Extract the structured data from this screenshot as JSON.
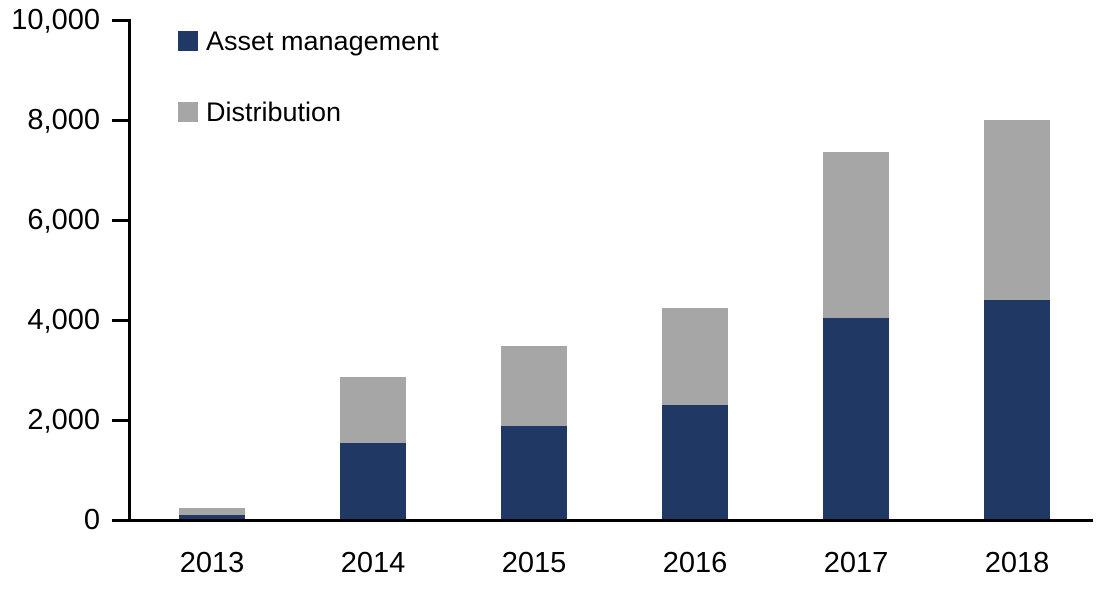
{
  "chart_data": {
    "type": "bar",
    "stacked": true,
    "title": "",
    "xlabel": "",
    "ylabel": "",
    "categories": [
      "2013",
      "2014",
      "2015",
      "2016",
      "2017",
      "2018"
    ],
    "series": [
      {
        "name": "Asset management",
        "color": "#1F3864",
        "values": [
          110,
          1540,
          1880,
          2300,
          4040,
          4400
        ]
      },
      {
        "name": "Distribution",
        "color": "#A6A6A6",
        "values": [
          130,
          1320,
          1600,
          1940,
          3320,
          3600
        ]
      }
    ],
    "totals": [
      240,
      2860,
      3480,
      4240,
      7360,
      8000
    ],
    "ylim": [
      0,
      10000
    ],
    "yticks": [
      {
        "value": 0,
        "label": "0"
      },
      {
        "value": 2000,
        "label": "2,000"
      },
      {
        "value": 4000,
        "label": "4,000"
      },
      {
        "value": 6000,
        "label": "6,000"
      },
      {
        "value": 8000,
        "label": "8,000"
      },
      {
        "value": 10000,
        "label": "10,000"
      }
    ],
    "grid": false,
    "legend_position": "top-left",
    "axis_color": "#000000",
    "background_color": "#FFFFFF",
    "text_color": "#000000"
  }
}
